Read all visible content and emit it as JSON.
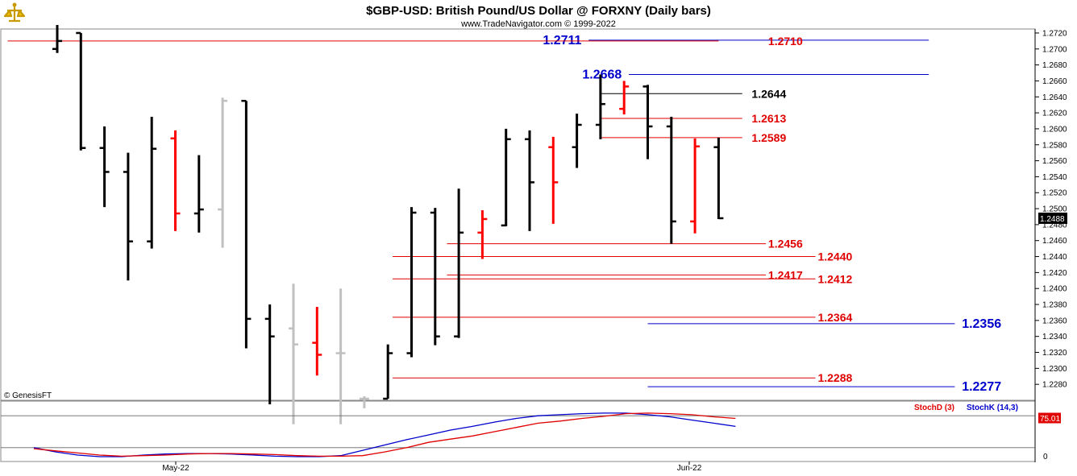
{
  "title": "$GBP-USD:  British Pound/US Dollar @ FORXNY  (Daily bars)",
  "subtitle": "www.TradeNavigator.com © 1999-2022",
  "watermark": "© GenesisFT",
  "colors": {
    "up": "#000000",
    "down": "#ff0000",
    "inside": "#c0c0c0",
    "red_level": "#e00000",
    "blue_level": "#0000cc",
    "black_level": "#000000",
    "stoch_d": "#e00000",
    "stoch_k": "#0000cc",
    "last_price_bg": "#000000",
    "stoch_value_bg": "#e00000"
  },
  "chart_data": {
    "type": "ohlc",
    "symbol": "$GBP-USD",
    "x_labels": [
      {
        "label": "May-22",
        "bar": 7
      },
      {
        "label": "Jun-22",
        "bar": 28
      }
    ],
    "ylim": [
      1.226,
      1.2725
    ],
    "y_ticks": [
      "1.2280",
      "1.2300",
      "1.2320",
      "1.2340",
      "1.2360",
      "1.2380",
      "1.2400",
      "1.2420",
      "1.2440",
      "1.2460",
      "1.2480",
      "1.2500",
      "1.2520",
      "1.2540",
      "1.2560",
      "1.2580",
      "1.2600",
      "1.2620",
      "1.2640",
      "1.2660",
      "1.2680",
      "1.2700",
      "1.2720"
    ],
    "last_price": "1.2488",
    "bars": [
      {
        "i": 0,
        "o": 1.27,
        "h": 1.273,
        "l": 1.2695,
        "c": 1.271,
        "color": "up"
      },
      {
        "i": 1,
        "o": 1.272,
        "h": 1.272,
        "l": 1.2573,
        "c": 1.2576,
        "color": "up"
      },
      {
        "i": 2,
        "o": 1.2576,
        "h": 1.2603,
        "l": 1.2502,
        "c": 1.2546,
        "color": "up"
      },
      {
        "i": 3,
        "o": 1.2546,
        "h": 1.257,
        "l": 1.241,
        "c": 1.2459,
        "color": "up"
      },
      {
        "i": 4,
        "o": 1.2459,
        "h": 1.2615,
        "l": 1.245,
        "c": 1.2575,
        "color": "up"
      },
      {
        "i": 5,
        "o": 1.2588,
        "h": 1.2598,
        "l": 1.2472,
        "c": 1.2494,
        "color": "down"
      },
      {
        "i": 6,
        "o": 1.2494,
        "h": 1.2567,
        "l": 1.247,
        "c": 1.2499,
        "color": "up"
      },
      {
        "i": 7,
        "o": 1.2499,
        "h": 1.2639,
        "l": 1.2451,
        "c": 1.2635,
        "color": "inside"
      },
      {
        "i": 8,
        "o": 1.2635,
        "h": 1.2635,
        "l": 1.2325,
        "c": 1.2362,
        "color": "up"
      },
      {
        "i": 9,
        "o": 1.2362,
        "h": 1.238,
        "l": 1.2255,
        "c": 1.234,
        "color": "up"
      },
      {
        "i": 10,
        "o": 1.235,
        "h": 1.2406,
        "l": 1.223,
        "c": 1.233,
        "color": "inside"
      },
      {
        "i": 11,
        "o": 1.2332,
        "h": 1.2377,
        "l": 1.2291,
        "c": 1.2317,
        "color": "down"
      },
      {
        "i": 12,
        "o": 1.2319,
        "h": 1.24,
        "l": 1.223,
        "c": 1.2319,
        "color": "inside"
      },
      {
        "i": 13,
        "o": 1.2262,
        "h": 1.2265,
        "l": 1.225,
        "c": 1.2262,
        "color": "inside"
      },
      {
        "i": 14,
        "o": 1.2262,
        "h": 1.233,
        "l": 1.2262,
        "c": 1.2319,
        "color": "up"
      },
      {
        "i": 15,
        "o": 1.2319,
        "h": 1.2502,
        "l": 1.2314,
        "c": 1.2495,
        "color": "up"
      },
      {
        "i": 16,
        "o": 1.2495,
        "h": 1.2501,
        "l": 1.2329,
        "c": 1.234,
        "color": "up"
      },
      {
        "i": 17,
        "o": 1.234,
        "h": 1.2525,
        "l": 1.2338,
        "c": 1.247,
        "color": "up"
      },
      {
        "i": 18,
        "o": 1.247,
        "h": 1.2498,
        "l": 1.2437,
        "c": 1.2487,
        "color": "down"
      },
      {
        "i": 19,
        "o": 1.2479,
        "h": 1.26,
        "l": 1.2478,
        "c": 1.2587,
        "color": "up"
      },
      {
        "i": 20,
        "o": 1.2587,
        "h": 1.2598,
        "l": 1.2472,
        "c": 1.2533,
        "color": "up"
      },
      {
        "i": 21,
        "o": 1.2577,
        "h": 1.259,
        "l": 1.2481,
        "c": 1.2533,
        "color": "down"
      },
      {
        "i": 22,
        "o": 1.2577,
        "h": 1.2619,
        "l": 1.2551,
        "c": 1.2605,
        "color": "up"
      },
      {
        "i": 23,
        "o": 1.2605,
        "h": 1.2668,
        "l": 1.2587,
        "c": 1.2631,
        "color": "up"
      },
      {
        "i": 24,
        "o": 1.2625,
        "h": 1.266,
        "l": 1.2618,
        "c": 1.2653,
        "color": "down"
      },
      {
        "i": 25,
        "o": 1.2653,
        "h": 1.2655,
        "l": 1.2562,
        "c": 1.2603,
        "color": "up"
      },
      {
        "i": 26,
        "o": 1.2603,
        "h": 1.2615,
        "l": 1.2456,
        "c": 1.2484,
        "color": "up"
      },
      {
        "i": 27,
        "o": 1.2484,
        "h": 1.2588,
        "l": 1.2469,
        "c": 1.2578,
        "color": "down"
      },
      {
        "i": 28,
        "o": 1.2577,
        "h": 1.2589,
        "l": 1.2487,
        "c": 1.2488,
        "color": "up"
      }
    ],
    "levels": [
      {
        "label": "1.2711",
        "value": 1.2711,
        "color": "blue_level",
        "from_bar": 22.5,
        "to_bar": 36.9,
        "label_bar": 22.2,
        "label_side": "left",
        "label_size": "big"
      },
      {
        "label": "1.2710",
        "value": 1.271,
        "color": "red_level",
        "from_bar": -2.1,
        "to_bar": 28.0,
        "label_bar": 30.1,
        "label_side": "right",
        "label_size": "normal"
      },
      {
        "label": "1.2668",
        "value": 1.2668,
        "color": "blue_level",
        "from_bar": 24.2,
        "to_bar": 36.9,
        "label_bar": 23.9,
        "label_side": "left",
        "label_size": "big"
      },
      {
        "label": "1.2644",
        "value": 1.2644,
        "color": "black_level",
        "from_bar": 23.0,
        "to_bar": 29.0,
        "label_bar": 29.4,
        "label_side": "right",
        "label_size": "normal"
      },
      {
        "label": "1.2613",
        "value": 1.2613,
        "color": "red_level",
        "from_bar": 23.0,
        "to_bar": 29.0,
        "label_bar": 29.4,
        "label_side": "right",
        "label_size": "normal"
      },
      {
        "label": "1.2589",
        "value": 1.2589,
        "color": "red_level",
        "from_bar": 23.0,
        "to_bar": 29.0,
        "label_bar": 29.4,
        "label_side": "right",
        "label_size": "normal"
      },
      {
        "label": "1.2456",
        "value": 1.2456,
        "color": "red_level",
        "from_bar": 16.5,
        "to_bar": 30.0,
        "label_bar": 30.1,
        "label_side": "right",
        "label_size": "normal"
      },
      {
        "label": "1.2440",
        "value": 1.244,
        "color": "red_level",
        "from_bar": 14.2,
        "to_bar": 32.1,
        "label_bar": 32.2,
        "label_side": "right",
        "label_size": "normal"
      },
      {
        "label": "1.2417",
        "value": 1.2417,
        "color": "red_level",
        "from_bar": 16.5,
        "to_bar": 30.0,
        "label_bar": 30.1,
        "label_side": "right",
        "label_size": "normal"
      },
      {
        "label": "1.2412",
        "value": 1.2412,
        "color": "red_level",
        "from_bar": 14.2,
        "to_bar": 32.1,
        "label_bar": 32.2,
        "label_side": "right",
        "label_size": "normal"
      },
      {
        "label": "1.2364",
        "value": 1.2364,
        "color": "red_level",
        "from_bar": 14.2,
        "to_bar": 32.1,
        "label_bar": 32.2,
        "label_side": "right",
        "label_size": "normal"
      },
      {
        "label": "1.2356",
        "value": 1.2356,
        "color": "blue_level",
        "from_bar": 25.0,
        "to_bar": 38.0,
        "label_bar": 38.3,
        "label_side": "right",
        "label_size": "big"
      },
      {
        "label": "1.2288",
        "value": 1.2288,
        "color": "red_level",
        "from_bar": 14.2,
        "to_bar": 32.1,
        "label_bar": 32.2,
        "label_side": "right",
        "label_size": "normal"
      },
      {
        "label": "1.2277",
        "value": 1.2277,
        "color": "blue_level",
        "from_bar": 25.0,
        "to_bar": 38.0,
        "label_bar": 38.3,
        "label_side": "right",
        "label_size": "big"
      }
    ],
    "stochastic": {
      "legend": [
        {
          "label": "StochD (3)",
          "color": "stoch_d"
        },
        {
          "label": "StochK (14,3)",
          "color": "stoch_k"
        }
      ],
      "ylim": [
        0,
        100
      ],
      "y_ticks": [
        "0"
      ],
      "levels": [
        80,
        20
      ],
      "value_label": "75.01",
      "stoch_d": [
        18,
        14,
        10,
        6,
        4,
        5,
        6,
        8,
        9,
        9,
        8,
        7,
        5,
        4,
        4,
        5,
        12,
        20,
        30,
        36,
        42,
        50,
        58,
        66,
        70,
        75,
        79,
        84,
        85,
        84,
        82,
        78,
        75
      ],
      "stoch_k": [
        20,
        12,
        6,
        3,
        3,
        6,
        8,
        9,
        9,
        8,
        6,
        4,
        3,
        3,
        5,
        15,
        25,
        35,
        44,
        53,
        60,
        68,
        75,
        80,
        82,
        84,
        85,
        85,
        82,
        78,
        72,
        66,
        60
      ]
    }
  }
}
